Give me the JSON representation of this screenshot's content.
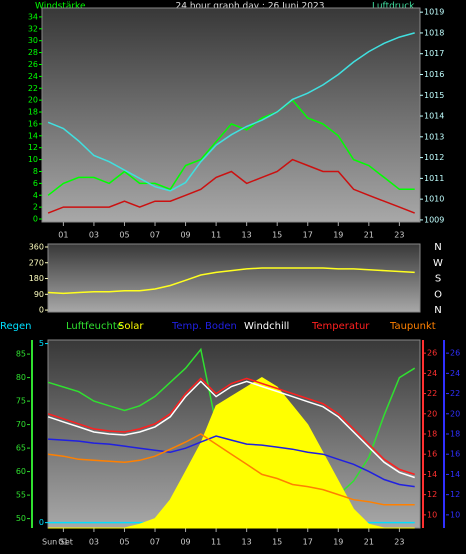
{
  "chart_data": [
    {
      "type": "line",
      "title": "24 hour graph day : 26 Juni 2023",
      "y_label": "Windstärke",
      "y2_label": "Luftdruck",
      "x": [
        0,
        1,
        2,
        3,
        4,
        5,
        6,
        7,
        8,
        9,
        10,
        11,
        12,
        13,
        14,
        15,
        16,
        17,
        18,
        19,
        20,
        21,
        22,
        23,
        24
      ],
      "xlim": [
        -0.4,
        24.35
      ],
      "xticks": [
        {
          "value": 1,
          "label": "01"
        },
        {
          "value": 3,
          "label": "03"
        },
        {
          "value": 5,
          "label": "05"
        },
        {
          "value": 7,
          "label": "07"
        },
        {
          "value": 9,
          "label": "09"
        },
        {
          "value": 11,
          "label": "11"
        },
        {
          "value": 13,
          "label": "13"
        },
        {
          "value": 15,
          "label": "15"
        },
        {
          "value": 17,
          "label": "17"
        },
        {
          "value": 19,
          "label": "19"
        },
        {
          "value": 21,
          "label": "21"
        },
        {
          "value": 23,
          "label": "23"
        }
      ],
      "ylim": [
        -0.5,
        35.5
      ],
      "yticks": [
        0,
        2,
        4,
        6,
        8,
        10,
        12,
        14,
        16,
        18,
        20,
        22,
        24,
        26,
        28,
        30,
        32,
        34
      ],
      "y2lim": [
        1008.9,
        1019.2
      ],
      "y2ticks": [
        1009,
        1010,
        1011,
        1012,
        1013,
        1014,
        1015,
        1016,
        1017,
        1018,
        1019
      ],
      "series": [
        {
          "color": "#00ff00",
          "values": [
            4,
            6,
            7,
            7,
            6,
            8,
            6,
            6,
            5,
            9,
            10,
            13,
            16,
            15,
            17,
            18,
            20,
            17,
            16,
            14,
            10,
            9,
            7,
            5,
            5
          ]
        },
        {
          "color": "#cc1010",
          "values": [
            1,
            2,
            2,
            2,
            2,
            3,
            2,
            3,
            3,
            4,
            5,
            7,
            8,
            6,
            7,
            8,
            10,
            9,
            8,
            8,
            5,
            4,
            3,
            2,
            1
          ]
        },
        {
          "color": "#40e0e0",
          "axis": "y2",
          "values": [
            1013.7,
            1013.4,
            1012.8,
            1012.1,
            1011.8,
            1011.4,
            1011.0,
            1010.6,
            1010.4,
            1010.8,
            1011.8,
            1012.6,
            1013.1,
            1013.5,
            1013.8,
            1014.2,
            1014.8,
            1015.1,
            1015.5,
            1016.0,
            1016.6,
            1017.1,
            1017.5,
            1017.8,
            1018.0
          ]
        }
      ]
    },
    {
      "type": "line",
      "x": [
        0,
        1,
        2,
        3,
        4,
        5,
        6,
        7,
        8,
        9,
        10,
        11,
        12,
        13,
        14,
        15,
        16,
        17,
        18,
        19,
        20,
        21,
        22,
        23,
        24
      ],
      "xlim": [
        -0.4,
        24.35
      ],
      "ylim": [
        -11,
        377
      ],
      "yticks": [
        0,
        90,
        180,
        270,
        360
      ],
      "compass": [
        "N",
        "O",
        "S",
        "W",
        "N"
      ],
      "series": [
        {
          "color": "#ffff20",
          "values": [
            100,
            95,
            100,
            105,
            105,
            110,
            110,
            120,
            140,
            170,
            200,
            215,
            225,
            235,
            240,
            240,
            240,
            240,
            240,
            235,
            235,
            230,
            225,
            220,
            215
          ]
        }
      ]
    },
    {
      "type": "line",
      "annotation": "Sun Set",
      "x": [
        0,
        1,
        2,
        3,
        4,
        5,
        6,
        7,
        8,
        9,
        10,
        11,
        12,
        13,
        14,
        15,
        16,
        17,
        18,
        19,
        20,
        21,
        22,
        23,
        24
      ],
      "xlim": [
        -0.4,
        24.35
      ],
      "xticks": [
        {
          "value": 1,
          "label": "01"
        },
        {
          "value": 3,
          "label": "03"
        },
        {
          "value": 5,
          "label": "05"
        },
        {
          "value": 7,
          "label": "07"
        },
        {
          "value": 9,
          "label": "09"
        },
        {
          "value": 11,
          "label": "11"
        },
        {
          "value": 13,
          "label": "13"
        },
        {
          "value": 15,
          "label": "15"
        },
        {
          "value": 17,
          "label": "17"
        },
        {
          "value": 19,
          "label": "19"
        },
        {
          "value": 21,
          "label": "21"
        },
        {
          "value": 23,
          "label": "23"
        }
      ],
      "ylim": [
        48,
        88
      ],
      "yticks": [
        50,
        55,
        60,
        65,
        70,
        75,
        80,
        85
      ],
      "y2lim": [
        8.7,
        27.3
      ],
      "y2ticks": [
        10,
        12,
        14,
        16,
        18,
        20,
        22,
        24,
        26
      ],
      "y3lim": [
        8.7,
        27.3
      ],
      "y3ticks": [
        10,
        12,
        14,
        16,
        18,
        20,
        22,
        24,
        26
      ],
      "y4lim": [
        -0.15,
        5.1
      ],
      "y4ticks": [
        0,
        5
      ],
      "y5lim": [
        0,
        1000
      ],
      "series": [
        {
          "name": "Regen",
          "color": "#00e0ff",
          "axis": "y4",
          "values": [
            0,
            0,
            0,
            0,
            0,
            0,
            0,
            0,
            0,
            0,
            0,
            0,
            0,
            0,
            0,
            0,
            0,
            0,
            0,
            0,
            0,
            0,
            0,
            0,
            0
          ]
        },
        {
          "name": "Luftfeuchte",
          "color": "#30e030",
          "values": [
            79,
            78,
            77,
            75,
            74,
            73,
            74,
            76,
            79,
            82,
            86,
            70,
            60,
            57,
            58,
            56,
            55,
            54,
            52,
            55,
            58,
            63,
            72,
            80,
            82
          ]
        },
        {
          "name": "Solar",
          "color": "#ffff00",
          "axis": "y5",
          "style": "area",
          "values": [
            0,
            0,
            0,
            0,
            0,
            0,
            20,
            50,
            150,
            300,
            450,
            650,
            700,
            750,
            800,
            750,
            650,
            550,
            400,
            250,
            100,
            20,
            0,
            0,
            0
          ]
        },
        {
          "name": "Temp. Boden",
          "color": "#2020e0",
          "axis": "y3",
          "values": [
            17.5,
            17.4,
            17.3,
            17.1,
            17.0,
            16.8,
            16.6,
            16.4,
            16.2,
            16.6,
            17.2,
            17.8,
            17.4,
            17.0,
            16.9,
            16.7,
            16.5,
            16.2,
            16.0,
            15.5,
            15.0,
            14.3,
            13.5,
            13.0,
            12.8
          ]
        },
        {
          "name": "Windchill",
          "color": "#ffffff",
          "axis": "y2",
          "values": [
            19.7,
            19.2,
            18.7,
            18.2,
            18.0,
            17.9,
            18.2,
            18.7,
            19.7,
            21.7,
            23.2,
            21.7,
            22.7,
            23.2,
            22.7,
            22.2,
            21.7,
            21.2,
            20.7,
            19.7,
            18.2,
            16.7,
            15.2,
            14.2,
            13.7
          ]
        },
        {
          "name": "Temperatur",
          "color": "#ff2020",
          "axis": "y2",
          "values": [
            20,
            19.5,
            19,
            18.5,
            18.3,
            18.2,
            18.5,
            19,
            20,
            22,
            23.5,
            22,
            23,
            23.5,
            23,
            22.5,
            22,
            21.5,
            21,
            20,
            18.5,
            17,
            15.5,
            14.5,
            14
          ]
        },
        {
          "name": "Taupunkt",
          "color": "#ff8000",
          "axis": "y2",
          "values": [
            16,
            15.8,
            15.5,
            15.4,
            15.3,
            15.2,
            15.4,
            15.8,
            16.5,
            17.2,
            18,
            17,
            16,
            15,
            14,
            13.6,
            13,
            12.8,
            12.5,
            12,
            11.5,
            11.3,
            11,
            11,
            11
          ]
        }
      ]
    }
  ]
}
